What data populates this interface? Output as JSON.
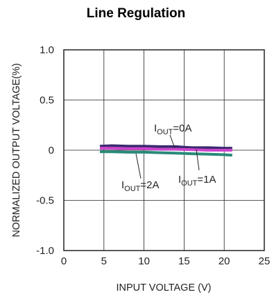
{
  "chart_data": {
    "type": "line",
    "title": "Line Regulation",
    "xlabel": "INPUT VOLTAGE (V)",
    "ylabel": "NORMALIZED OUTPUT VOLTAGE(%)",
    "xlim": [
      0,
      25
    ],
    "ylim": [
      -1.0,
      1.0
    ],
    "x_ticks": [
      0,
      5,
      10,
      15,
      20,
      25
    ],
    "y_ticks": [
      1.0,
      0.5,
      0,
      -0.5,
      -1.0
    ],
    "x_tick_labels": [
      "0",
      "5",
      "10",
      "15",
      "20",
      "25"
    ],
    "y_tick_labels": [
      "1.0",
      "0.5",
      "0",
      "-0.5",
      "-1.0"
    ],
    "grid": true,
    "series": [
      {
        "name": "I_OUT=0A",
        "color": "#3a2a6e",
        "x": [
          4.5,
          6,
          8,
          10,
          12,
          14,
          15,
          16,
          18,
          20,
          21
        ],
        "y": [
          0.04,
          0.045,
          0.04,
          0.04,
          0.035,
          0.035,
          0.03,
          0.025,
          0.025,
          0.02,
          0.02
        ]
      },
      {
        "name": "I_OUT=1A",
        "color": "#cc44cc",
        "x": [
          4.5,
          6,
          8,
          10,
          12,
          14,
          16,
          18,
          20,
          21
        ],
        "y": [
          0.02,
          0.02,
          0.015,
          0.015,
          0.01,
          0.01,
          0.005,
          0.0,
          0.0,
          0.0
        ]
      },
      {
        "name": "I_OUT=2A",
        "color": "#2a8a7a",
        "x": [
          4.5,
          6,
          8,
          10,
          12,
          14,
          16,
          18,
          20,
          21
        ],
        "y": [
          -0.015,
          -0.015,
          -0.02,
          -0.02,
          -0.025,
          -0.03,
          -0.035,
          -0.04,
          -0.045,
          -0.05
        ]
      }
    ],
    "annotations": [
      {
        "main": "I",
        "sub": "OUT",
        "rest": "=0A"
      },
      {
        "main": "I",
        "sub": "OUT",
        "rest": "=1A"
      },
      {
        "main": "I",
        "sub": "OUT",
        "rest": "=2A"
      }
    ]
  }
}
